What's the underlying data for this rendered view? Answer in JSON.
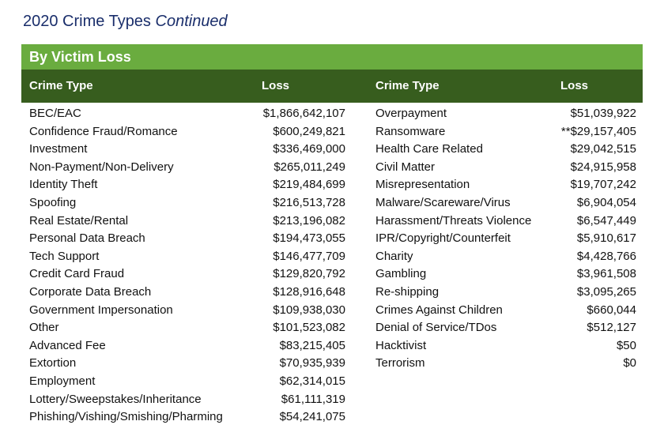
{
  "title": {
    "main": "2020 Crime Types",
    "suffix": "Continued"
  },
  "banner": "By Victim Loss",
  "headers": {
    "crime_type": "Crime Type",
    "loss": "Loss"
  },
  "left_rows": [
    {
      "type": "BEC/EAC",
      "loss": "$1,866,642,107"
    },
    {
      "type": "Confidence Fraud/Romance",
      "loss": "$600,249,821"
    },
    {
      "type": "Investment",
      "loss": "$336,469,000"
    },
    {
      "type": "Non-Payment/Non-Delivery",
      "loss": "$265,011,249"
    },
    {
      "type": "Identity Theft",
      "loss": "$219,484,699"
    },
    {
      "type": "Spoofing",
      "loss": "$216,513,728"
    },
    {
      "type": "Real Estate/Rental",
      "loss": "$213,196,082"
    },
    {
      "type": "Personal Data Breach",
      "loss": "$194,473,055"
    },
    {
      "type": "Tech Support",
      "loss": "$146,477,709"
    },
    {
      "type": "Credit Card Fraud",
      "loss": "$129,820,792"
    },
    {
      "type": "Corporate Data Breach",
      "loss": "$128,916,648"
    },
    {
      "type": "Government Impersonation",
      "loss": "$109,938,030"
    },
    {
      "type": "Other",
      "loss": "$101,523,082"
    },
    {
      "type": "Advanced Fee",
      "loss": "$83,215,405"
    },
    {
      "type": "Extortion",
      "loss": "$70,935,939"
    },
    {
      "type": "Employment",
      "loss": "$62,314,015"
    },
    {
      "type": "Lottery/Sweepstakes/Inheritance",
      "loss": "$61,111,319"
    },
    {
      "type": "Phishing/Vishing/Smishing/Pharming",
      "loss": "$54,241,075"
    }
  ],
  "right_rows": [
    {
      "type": "Overpayment",
      "loss": "$51,039,922"
    },
    {
      "type": "Ransomware",
      "loss": "**$29,157,405"
    },
    {
      "type": "Health Care Related",
      "loss": "$29,042,515"
    },
    {
      "type": "Civil Matter",
      "loss": "$24,915,958"
    },
    {
      "type": "Misrepresentation",
      "loss": "$19,707,242"
    },
    {
      "type": "Malware/Scareware/Virus",
      "loss": "$6,904,054"
    },
    {
      "type": "Harassment/Threats Violence",
      "loss": "$6,547,449"
    },
    {
      "type": "IPR/Copyright/Counterfeit",
      "loss": "$5,910,617"
    },
    {
      "type": "Charity",
      "loss": "$4,428,766"
    },
    {
      "type": "Gambling",
      "loss": "$3,961,508"
    },
    {
      "type": "Re-shipping",
      "loss": "$3,095,265"
    },
    {
      "type": "Crimes Against Children",
      "loss": "$660,044"
    },
    {
      "type": "Denial of Service/TDos",
      "loss": "$512,127"
    },
    {
      "type": "Hacktivist",
      "loss": "$50"
    },
    {
      "type": "Terrorism",
      "loss": "$0"
    }
  ]
}
